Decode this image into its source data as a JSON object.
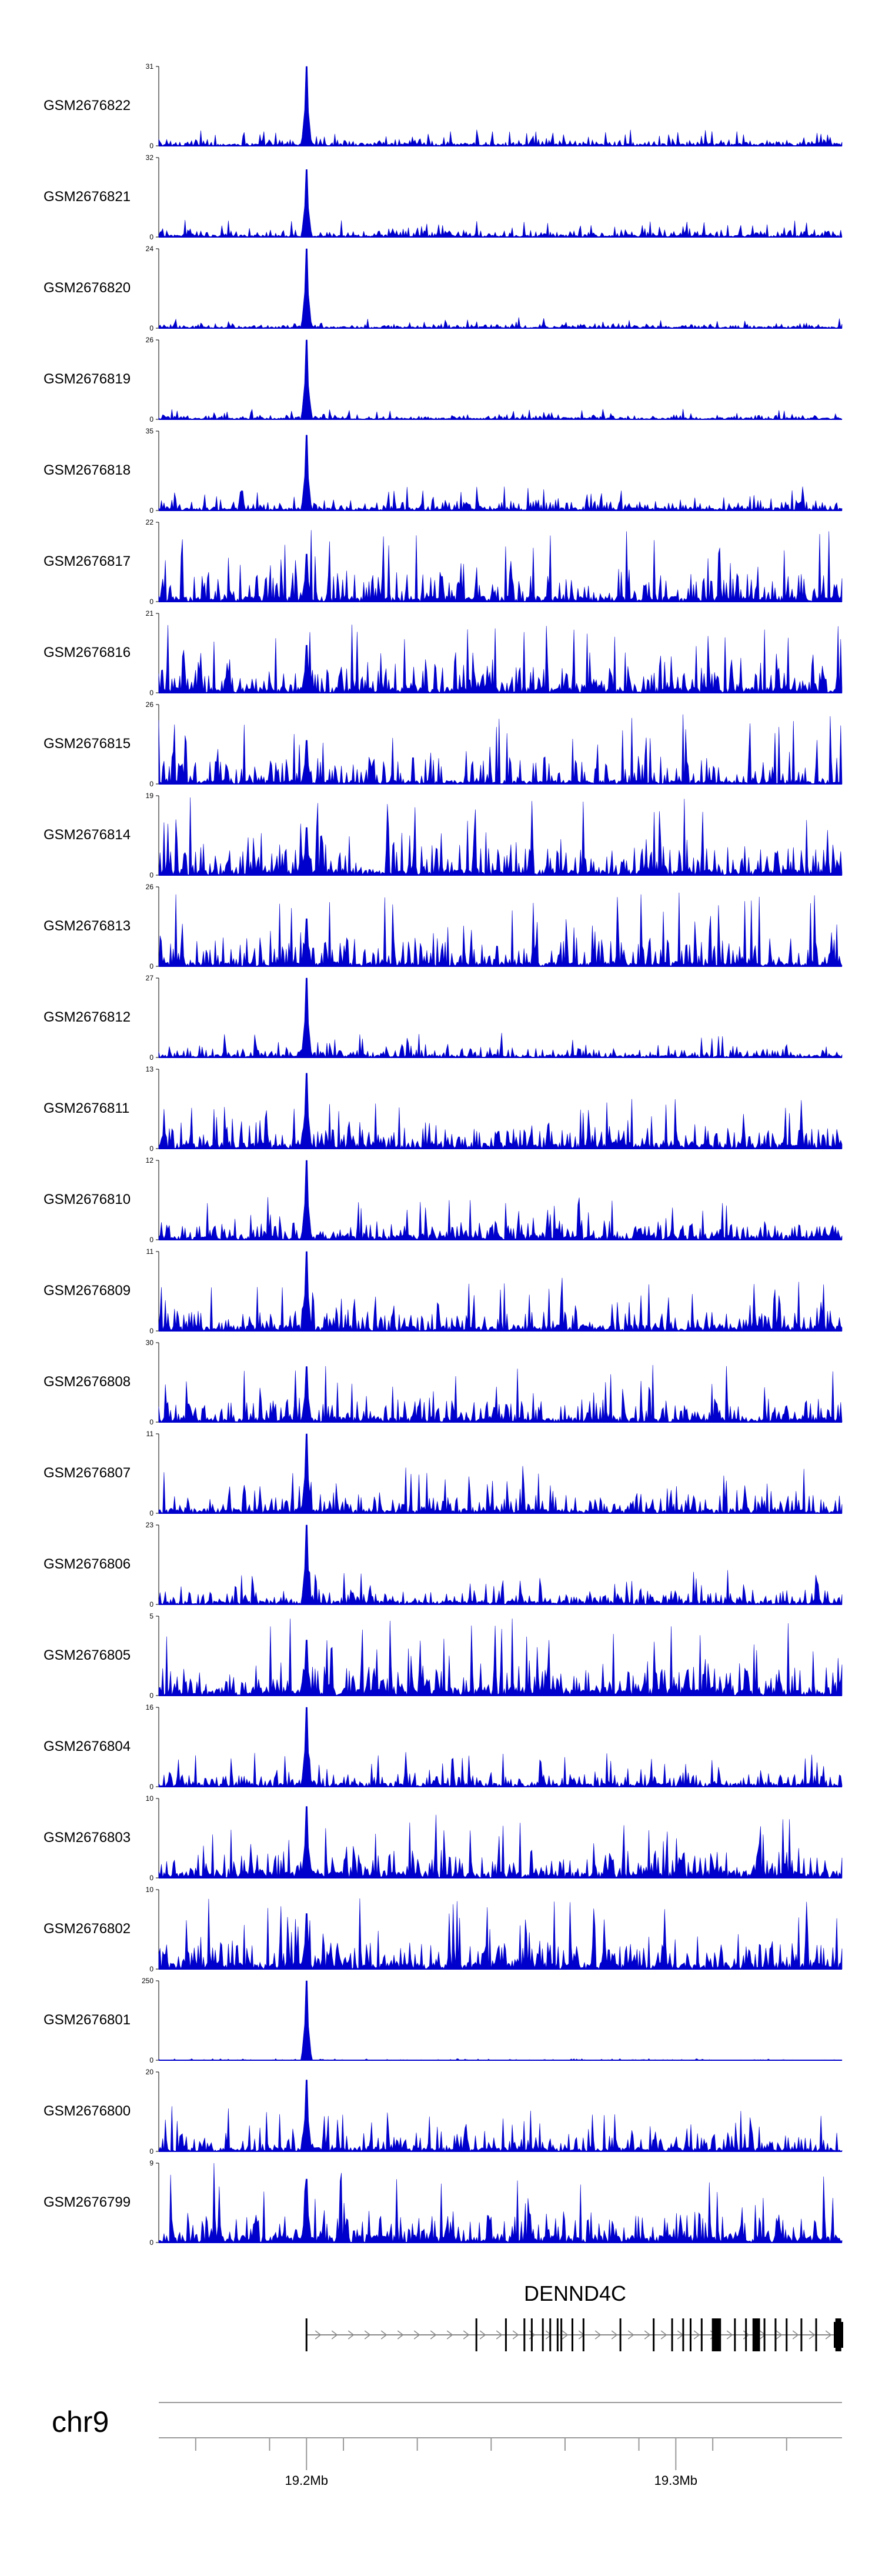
{
  "chart_data": {
    "type": "area",
    "track_color": "#0000cc",
    "x_range_mb": [
      19.16,
      19.345
    ],
    "peak_position_mb": 19.2,
    "tracks": [
      {
        "name": "GSM2676822",
        "ymax": 31,
        "ymin": 0,
        "peak": 1.0,
        "bg": 0.12,
        "noise": 0.18
      },
      {
        "name": "GSM2676821",
        "ymax": 32,
        "ymin": 0,
        "peak": 0.85,
        "bg": 0.12,
        "noise": 0.2
      },
      {
        "name": "GSM2676820",
        "ymax": 24,
        "ymin": 0,
        "peak": 1.0,
        "bg": 0.08,
        "noise": 0.12
      },
      {
        "name": "GSM2676819",
        "ymax": 26,
        "ymin": 0,
        "peak": 1.0,
        "bg": 0.08,
        "noise": 0.14
      },
      {
        "name": "GSM2676818",
        "ymax": 35,
        "ymin": 0,
        "peak": 0.95,
        "bg": 0.15,
        "noise": 0.3
      },
      {
        "name": "GSM2676817",
        "ymax": 22,
        "ymin": 0,
        "peak": 0.6,
        "bg": 0.3,
        "noise": 0.9
      },
      {
        "name": "GSM2676816",
        "ymax": 21,
        "ymin": 0,
        "peak": 0.6,
        "bg": 0.3,
        "noise": 0.9
      },
      {
        "name": "GSM2676815",
        "ymax": 26,
        "ymin": 0,
        "peak": 0.55,
        "bg": 0.2,
        "noise": 0.85
      },
      {
        "name": "GSM2676814",
        "ymax": 19,
        "ymin": 0,
        "peak": 0.6,
        "bg": 0.3,
        "noise": 0.95
      },
      {
        "name": "GSM2676813",
        "ymax": 26,
        "ymin": 0,
        "peak": 0.6,
        "bg": 0.25,
        "noise": 0.9
      },
      {
        "name": "GSM2676812",
        "ymax": 27,
        "ymin": 0,
        "peak": 1.0,
        "bg": 0.15,
        "noise": 0.3
      },
      {
        "name": "GSM2676811",
        "ymax": 13,
        "ymin": 0,
        "peak": 0.95,
        "bg": 0.3,
        "noise": 0.6
      },
      {
        "name": "GSM2676810",
        "ymax": 12,
        "ymin": 0,
        "peak": 1.0,
        "bg": 0.25,
        "noise": 0.5
      },
      {
        "name": "GSM2676809",
        "ymax": 11,
        "ymin": 0,
        "peak": 1.0,
        "bg": 0.3,
        "noise": 0.6
      },
      {
        "name": "GSM2676808",
        "ymax": 30,
        "ymin": 0,
        "peak": 0.7,
        "bg": 0.25,
        "noise": 0.7
      },
      {
        "name": "GSM2676807",
        "ymax": 11,
        "ymin": 0,
        "peak": 1.0,
        "bg": 0.25,
        "noise": 0.55
      },
      {
        "name": "GSM2676806",
        "ymax": 23,
        "ymin": 0,
        "peak": 1.0,
        "bg": 0.2,
        "noise": 0.4
      },
      {
        "name": "GSM2676805",
        "ymax": 5,
        "ymin": 0,
        "peak": 0.7,
        "bg": 0.45,
        "noise": 0.9
      },
      {
        "name": "GSM2676804",
        "ymax": 16,
        "ymin": 0,
        "peak": 1.0,
        "bg": 0.2,
        "noise": 0.4
      },
      {
        "name": "GSM2676803",
        "ymax": 10,
        "ymin": 0,
        "peak": 0.9,
        "bg": 0.35,
        "noise": 0.75
      },
      {
        "name": "GSM2676802",
        "ymax": 10,
        "ymin": 0,
        "peak": 0.7,
        "bg": 0.35,
        "noise": 0.85
      },
      {
        "name": "GSM2676801",
        "ymax": 250,
        "ymin": 0,
        "peak": 1.0,
        "bg": 0.01,
        "noise": 0.02
      },
      {
        "name": "GSM2676800",
        "ymax": 20,
        "ymin": 0,
        "peak": 0.9,
        "bg": 0.2,
        "noise": 0.55
      },
      {
        "name": "GSM2676799",
        "ymax": 9,
        "ymin": 0,
        "peak": 0.8,
        "bg": 0.4,
        "noise": 0.95
      }
    ],
    "gene": {
      "name": "DENND4C",
      "strand": "+",
      "start_mb": 19.2,
      "end_mb": 19.345,
      "exons_mb": [
        19.2,
        19.246,
        19.254,
        19.259,
        19.261,
        19.264,
        19.266,
        19.268,
        19.269,
        19.272,
        19.275,
        19.285,
        19.294,
        19.299,
        19.302,
        19.304,
        19.307,
        19.31,
        19.312,
        19.316,
        19.319,
        19.321,
        19.324,
        19.327,
        19.33,
        19.334,
        19.338,
        19.344
      ],
      "thick_exons_mb": [
        19.311,
        19.322,
        19.344
      ]
    },
    "chromosome": "chr9",
    "axis": {
      "ticks_mb": [
        19.17,
        19.19,
        19.21,
        19.23,
        19.25,
        19.27,
        19.29,
        19.31,
        19.33
      ],
      "major_ticks_mb": [
        19.2,
        19.3
      ],
      "tick_labels": [
        "19.2Mb",
        "19.3Mb"
      ]
    }
  }
}
